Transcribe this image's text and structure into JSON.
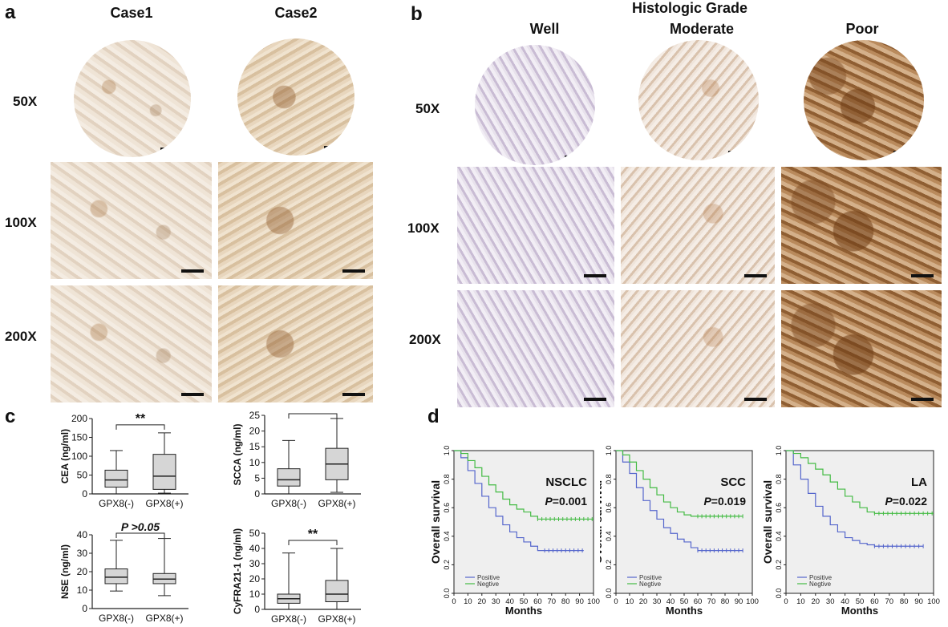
{
  "panels": {
    "a": {
      "letter": "a",
      "cols": [
        "Case1",
        "Case2"
      ],
      "rows": [
        "50X",
        "100X",
        "200X"
      ]
    },
    "b": {
      "letter": "b",
      "title": "Histologic Grade",
      "cols": [
        "Well",
        "Moderate",
        "Poor"
      ],
      "rows": [
        "50X",
        "100X",
        "200X"
      ]
    },
    "c": {
      "letter": "c"
    },
    "d": {
      "letter": "d"
    }
  },
  "chart_data": [
    {
      "type": "box",
      "id": "cea",
      "ylabel": "CEA (ng/ml)",
      "categories": [
        "GPX8(-)",
        "GPX8(+)"
      ],
      "ylim": [
        0,
        200
      ],
      "yticks": [
        0,
        50,
        100,
        150,
        200
      ],
      "boxes": [
        {
          "min": 0,
          "q1": 18,
          "median": 37,
          "q3": 63,
          "max": 115
        },
        {
          "min": 2,
          "q1": 12,
          "median": 47,
          "q3": 105,
          "max": 162
        }
      ],
      "significance": "**"
    },
    {
      "type": "box",
      "id": "scca",
      "ylabel": "SCCA (ng/ml)",
      "categories": [
        "GPX8(-)",
        "GPX8(+)"
      ],
      "ylim": [
        0,
        25
      ],
      "yticks": [
        0,
        5,
        10,
        15,
        20,
        25
      ],
      "boxes": [
        {
          "min": 0,
          "q1": 2.5,
          "median": 4.5,
          "q3": 8,
          "max": 17
        },
        {
          "min": 0.5,
          "q1": 4.5,
          "median": 9.5,
          "q3": 14.5,
          "max": 24
        }
      ],
      "significance": "***"
    },
    {
      "type": "box",
      "id": "nse",
      "ylabel": "NSE (ng/ml)",
      "categories": [
        "GPX8(-)",
        "GPX8(+)"
      ],
      "ylim": [
        0,
        40
      ],
      "yticks": [
        0,
        10,
        20,
        30,
        40
      ],
      "boxes": [
        {
          "min": 9.5,
          "q1": 13.5,
          "median": 17,
          "q3": 21.5,
          "max": 37
        },
        {
          "min": 7,
          "q1": 13.5,
          "median": 16,
          "q3": 19,
          "max": 38
        }
      ],
      "significance": "P >0.05"
    },
    {
      "type": "box",
      "id": "cyfra",
      "ylabel": "CyFRA21-1 (ng/ml)",
      "categories": [
        "GPX8(-)",
        "GPX8(+)"
      ],
      "ylim": [
        0,
        50
      ],
      "yticks": [
        0,
        10,
        20,
        30,
        40,
        50
      ],
      "boxes": [
        {
          "min": 0,
          "q1": 4,
          "median": 7,
          "q3": 10,
          "max": 37
        },
        {
          "min": 0,
          "q1": 5,
          "median": 10,
          "q3": 19,
          "max": 40
        }
      ],
      "significance": "**"
    },
    {
      "type": "line",
      "id": "nsclc",
      "label": "NSCLC",
      "pvalue": "P=0.001",
      "xlabel": "Months",
      "ylabel": "Overall survival",
      "xlim": [
        0,
        100
      ],
      "ylim": [
        0,
        1.0
      ],
      "xticks": [
        0,
        10,
        20,
        30,
        40,
        50,
        60,
        70,
        80,
        90,
        100
      ],
      "yticks": [
        "0.0",
        "0.2",
        "0.4",
        "0.6",
        "0.8",
        "1.0"
      ],
      "series": [
        {
          "name": "Positive",
          "color": "#5566cc",
          "x": [
            0,
            5,
            10,
            15,
            20,
            25,
            30,
            35,
            40,
            45,
            50,
            55,
            60,
            65,
            70,
            80,
            93
          ],
          "y": [
            1.0,
            0.95,
            0.86,
            0.77,
            0.68,
            0.6,
            0.54,
            0.48,
            0.43,
            0.39,
            0.36,
            0.33,
            0.3,
            0.3,
            0.3,
            0.3,
            0.3
          ]
        },
        {
          "name": "Negtive",
          "color": "#44bb44",
          "x": [
            0,
            5,
            10,
            15,
            20,
            25,
            30,
            35,
            40,
            45,
            50,
            55,
            60,
            70,
            80,
            100
          ],
          "y": [
            1.0,
            0.98,
            0.93,
            0.88,
            0.82,
            0.76,
            0.71,
            0.66,
            0.62,
            0.59,
            0.57,
            0.54,
            0.52,
            0.52,
            0.52,
            0.52
          ]
        }
      ]
    },
    {
      "type": "line",
      "id": "scc",
      "label": "SCC",
      "pvalue": "P=0.019",
      "xlabel": "Months",
      "ylabel": "Overall survival",
      "xlim": [
        0,
        100
      ],
      "ylim": [
        0,
        1.0
      ],
      "xticks": [
        0,
        10,
        20,
        30,
        40,
        50,
        60,
        70,
        80,
        90,
        100
      ],
      "yticks": [
        "0.0",
        "0.2",
        "0.4",
        "0.6",
        "0.8",
        "1.0"
      ],
      "series": [
        {
          "name": "Positive",
          "color": "#5566cc",
          "x": [
            0,
            5,
            10,
            15,
            20,
            25,
            30,
            35,
            40,
            45,
            50,
            55,
            60,
            70,
            80,
            93
          ],
          "y": [
            1.0,
            0.92,
            0.84,
            0.74,
            0.65,
            0.58,
            0.52,
            0.46,
            0.42,
            0.38,
            0.36,
            0.32,
            0.3,
            0.3,
            0.3,
            0.3
          ]
        },
        {
          "name": "Negtive",
          "color": "#44bb44",
          "x": [
            0,
            5,
            10,
            15,
            20,
            25,
            30,
            35,
            40,
            45,
            50,
            55,
            60,
            70,
            80,
            93
          ],
          "y": [
            1.0,
            0.97,
            0.92,
            0.86,
            0.8,
            0.74,
            0.69,
            0.64,
            0.6,
            0.57,
            0.55,
            0.54,
            0.54,
            0.54,
            0.54,
            0.54
          ]
        }
      ]
    },
    {
      "type": "line",
      "id": "la",
      "label": "LA",
      "pvalue": "P=0.022",
      "xlabel": "Months",
      "ylabel": "Overall survival",
      "xlim": [
        0,
        100
      ],
      "ylim": [
        0,
        1.0
      ],
      "xticks": [
        0,
        10,
        20,
        30,
        40,
        50,
        60,
        70,
        80,
        90,
        100
      ],
      "yticks": [
        "0.0",
        "0.2",
        "0.4",
        "0.6",
        "0.8",
        "1.0"
      ],
      "series": [
        {
          "name": "Positive",
          "color": "#5566cc",
          "x": [
            0,
            5,
            10,
            15,
            20,
            25,
            30,
            35,
            40,
            45,
            50,
            55,
            60,
            70,
            80,
            93
          ],
          "y": [
            1.0,
            0.9,
            0.8,
            0.7,
            0.61,
            0.54,
            0.48,
            0.43,
            0.39,
            0.37,
            0.35,
            0.34,
            0.33,
            0.33,
            0.33,
            0.33
          ]
        },
        {
          "name": "Negtive",
          "color": "#44bb44",
          "x": [
            0,
            5,
            10,
            15,
            20,
            25,
            30,
            35,
            40,
            45,
            50,
            55,
            60,
            70,
            80,
            100
          ],
          "y": [
            1.0,
            0.98,
            0.95,
            0.91,
            0.87,
            0.83,
            0.78,
            0.73,
            0.68,
            0.64,
            0.6,
            0.57,
            0.56,
            0.56,
            0.56,
            0.56
          ]
        }
      ]
    }
  ]
}
